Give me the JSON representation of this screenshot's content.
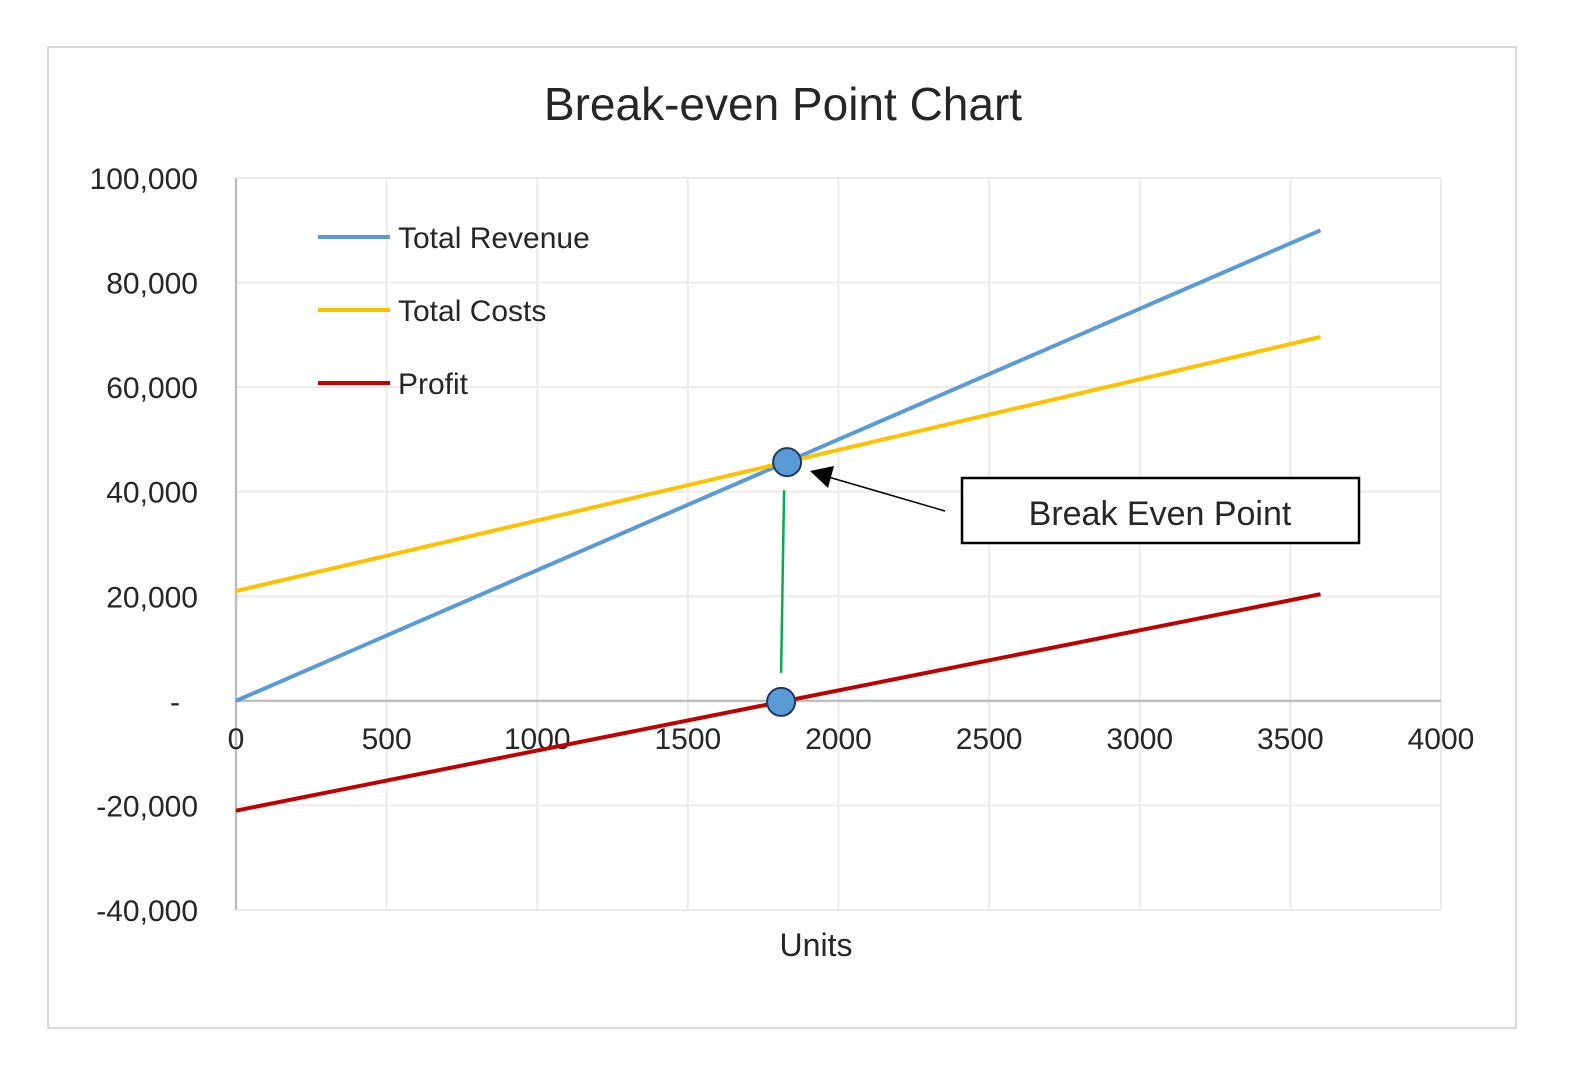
{
  "chart_data": {
    "type": "line",
    "title": "Break-even Point Chart",
    "xlabel": "Units",
    "ylabel": "",
    "xlim": [
      0,
      4000
    ],
    "ylim": [
      -40000,
      100000
    ],
    "x_ticks": [
      "0",
      "500",
      "1000",
      "1500",
      "2000",
      "2500",
      "3000",
      "3500",
      "4000"
    ],
    "x_tick_values": [
      0,
      500,
      1000,
      1500,
      2000,
      2500,
      3000,
      3500,
      4000
    ],
    "y_ticks": [
      "100,000",
      "80,000",
      "60,000",
      "40,000",
      "20,000",
      "-",
      "-20,000",
      "-40,000"
    ],
    "y_tick_values": [
      100000,
      80000,
      60000,
      40000,
      20000,
      0,
      -20000,
      -40000
    ],
    "grid": true,
    "legend_position": "top-left",
    "series": [
      {
        "name": "Total Revenue",
        "color": "#5b9bd5",
        "x": [
          0,
          3600
        ],
        "y": [
          0,
          90000
        ]
      },
      {
        "name": "Total Costs",
        "color": "#ffc000",
        "x": [
          0,
          3600
        ],
        "y": [
          21000,
          69600
        ]
      },
      {
        "name": "Profit",
        "color": "#c00000",
        "x": [
          0,
          3600
        ],
        "y": [
          -21000,
          20400
        ]
      }
    ],
    "break_even": {
      "units": 1826,
      "value": 45650,
      "marker_color": "#5b9bd5",
      "drop_line_color": "#00b050"
    },
    "annotation": "Break Even Point"
  }
}
